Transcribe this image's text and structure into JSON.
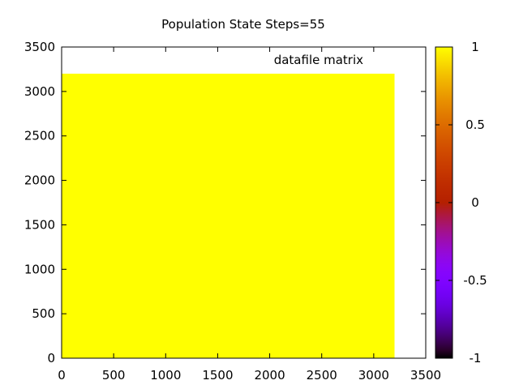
{
  "chart_data": {
    "type": "heatmap",
    "title": "Population State Steps=55",
    "legend_label": "datafile matrix",
    "legend_placement": "top-right",
    "xlabel": "",
    "ylabel": "",
    "xlim": [
      0,
      3500
    ],
    "ylim": [
      0,
      3500
    ],
    "x_ticks": [
      0,
      500,
      1000,
      1500,
      2000,
      2500,
      3000,
      3500
    ],
    "y_ticks": [
      0,
      500,
      1000,
      1500,
      2000,
      2500,
      3000,
      3500
    ],
    "matrix_extent": {
      "x": [
        0,
        3200
      ],
      "y": [
        0,
        3200
      ]
    },
    "matrix_value": 1,
    "grid": false,
    "colorbar": {
      "range": [
        -1,
        1
      ],
      "ticks": [
        -1,
        -0.5,
        0,
        0.5,
        1
      ],
      "tick_labels": [
        "-1",
        "-0.5",
        "0",
        "0.5",
        "1"
      ],
      "palette": "gnuplot"
    },
    "colors": {
      "cell": "#ffff00",
      "frame": "#000000",
      "background": "#ffffff"
    }
  }
}
